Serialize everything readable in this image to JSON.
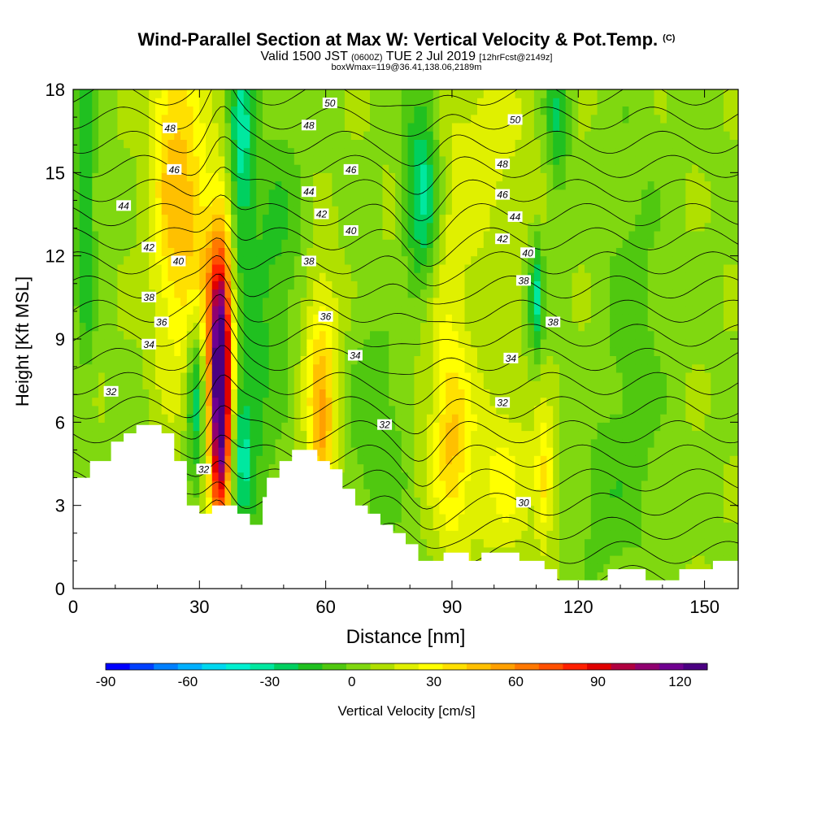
{
  "header": {
    "title": "Wind-Parallel Section at Max W: Vertical Velocity & Pot.Temp.",
    "copyright": "(C)",
    "valid_prefix": "Valid 1500 JST",
    "valid_utc": "(0600Z)",
    "valid_date": "TUE 2 Jul 2019",
    "forecast": "[12hrFcst@2149z]",
    "box_info": "boxWmax=119@36.41,138.06,2189m"
  },
  "chart_data": {
    "type": "heatmap",
    "title": "Wind-Parallel Section at Max W: Vertical Velocity & Pot.Temp.",
    "xlabel": "Distance [nm]",
    "ylabel": "Height [Kft MSL]",
    "xlim": [
      0,
      158
    ],
    "ylim": [
      0,
      18
    ],
    "x_ticks": [
      0,
      30,
      60,
      90,
      120,
      150
    ],
    "y_ticks": [
      0,
      3,
      6,
      9,
      12,
      15,
      18
    ],
    "colorbar": {
      "label": "Vertical Velocity [cm/s]",
      "ticks": [
        -90,
        -60,
        -30,
        0,
        30,
        60,
        90,
        120
      ],
      "range": [
        -90,
        130
      ],
      "colors": [
        "#0000ff",
        "#0040ff",
        "#0080ff",
        "#00b0ff",
        "#00d8f0",
        "#00f0d0",
        "#00e8a0",
        "#00d060",
        "#20c020",
        "#50c810",
        "#80d810",
        "#b0e000",
        "#e0f000",
        "#ffff00",
        "#ffe000",
        "#ffc000",
        "#ffa000",
        "#ff7800",
        "#ff5000",
        "#ff2000",
        "#e00000",
        "#b00040",
        "#900070",
        "#700090",
        "#4b0082"
      ]
    },
    "terrain_profile_kft": [
      [
        0,
        4.0
      ],
      [
        4,
        4.0
      ],
      [
        4,
        4.6
      ],
      [
        9,
        4.6
      ],
      [
        9,
        5.3
      ],
      [
        12,
        5.3
      ],
      [
        12,
        5.6
      ],
      [
        15,
        5.6
      ],
      [
        15,
        5.9
      ],
      [
        21,
        5.9
      ],
      [
        21,
        5.6
      ],
      [
        24,
        5.6
      ],
      [
        24,
        4.6
      ],
      [
        27,
        4.6
      ],
      [
        27,
        3.0
      ],
      [
        30,
        3.0
      ],
      [
        30,
        2.7
      ],
      [
        33,
        2.7
      ],
      [
        33,
        3.0
      ],
      [
        39,
        3.0
      ],
      [
        39,
        2.7
      ],
      [
        42,
        2.7
      ],
      [
        42,
        2.3
      ],
      [
        45,
        2.3
      ],
      [
        45,
        3.3
      ],
      [
        46,
        3.3
      ],
      [
        46,
        4.0
      ],
      [
        49,
        4.0
      ],
      [
        49,
        4.6
      ],
      [
        52,
        4.6
      ],
      [
        52,
        5.0
      ],
      [
        58,
        5.0
      ],
      [
        58,
        4.6
      ],
      [
        61,
        4.6
      ],
      [
        61,
        4.3
      ],
      [
        64,
        4.3
      ],
      [
        64,
        3.6
      ],
      [
        67,
        3.6
      ],
      [
        67,
        3.0
      ],
      [
        70,
        3.0
      ],
      [
        70,
        2.7
      ],
      [
        73,
        2.7
      ],
      [
        73,
        2.3
      ],
      [
        76,
        2.3
      ],
      [
        76,
        2.0
      ],
      [
        79,
        2.0
      ],
      [
        79,
        1.6
      ],
      [
        82,
        1.6
      ],
      [
        82,
        1.0
      ],
      [
        88,
        1.0
      ],
      [
        88,
        1.3
      ],
      [
        94,
        1.3
      ],
      [
        94,
        1.0
      ],
      [
        97,
        1.0
      ],
      [
        97,
        1.3
      ],
      [
        106,
        1.3
      ],
      [
        106,
        1.0
      ],
      [
        112,
        1.0
      ],
      [
        112,
        0.7
      ],
      [
        115,
        0.7
      ],
      [
        115,
        0.3
      ],
      [
        127,
        0.3
      ],
      [
        127,
        0.7
      ],
      [
        136,
        0.7
      ],
      [
        136,
        0.3
      ],
      [
        144,
        0.3
      ],
      [
        144,
        0.7
      ],
      [
        152,
        0.7
      ],
      [
        152,
        1.0
      ],
      [
        158,
        1.0
      ]
    ],
    "velocity_features": [
      {
        "x": 35,
        "z": 6.5,
        "sx": 1.8,
        "sz": 3.2,
        "w": 120
      },
      {
        "x": 35,
        "z": 10,
        "sx": 2.2,
        "sz": 3,
        "w": 45
      },
      {
        "x": 24,
        "z": 15,
        "sx": 4,
        "sz": 5,
        "w": 40
      },
      {
        "x": 30,
        "z": 12,
        "sx": 3,
        "sz": 3,
        "w": 25
      },
      {
        "x": 59,
        "z": 8,
        "sx": 3,
        "sz": 2.5,
        "w": 35
      },
      {
        "x": 59,
        "z": 5,
        "sx": 2,
        "sz": 1.5,
        "w": 30
      },
      {
        "x": 90,
        "z": 5,
        "sx": 3,
        "sz": 2.5,
        "w": 30
      },
      {
        "x": 102,
        "z": 4,
        "sx": 6,
        "sz": 2.5,
        "w": 20
      },
      {
        "x": 86,
        "z": 10,
        "sx": 6,
        "sz": 4,
        "w": 18
      },
      {
        "x": 112,
        "z": 4,
        "sx": 1.5,
        "sz": 1.5,
        "w": 30
      },
      {
        "x": 98,
        "z": 16,
        "sx": 8,
        "sz": 3,
        "w": 15
      },
      {
        "x": 44,
        "z": 8,
        "sx": 4,
        "sz": 5,
        "w": -15
      },
      {
        "x": 29,
        "z": 7,
        "sx": 1.5,
        "sz": 2.5,
        "w": -35
      },
      {
        "x": 40,
        "z": 5,
        "sx": 2,
        "sz": 2,
        "w": -30
      },
      {
        "x": 40,
        "z": 16,
        "sx": 2,
        "sz": 3,
        "w": -35
      },
      {
        "x": 83,
        "z": 14,
        "sx": 3,
        "sz": 3,
        "w": -45
      },
      {
        "x": 3,
        "z": 14,
        "sx": 1.5,
        "sz": 4,
        "w": -30
      },
      {
        "x": 110,
        "z": 10.5,
        "sx": 1.2,
        "sz": 1.5,
        "w": -35
      },
      {
        "x": 115,
        "z": 17,
        "sx": 2,
        "sz": 2,
        "w": -25
      },
      {
        "x": 133,
        "z": 8,
        "sx": 5,
        "sz": 6,
        "w": -12
      },
      {
        "x": 73,
        "z": 6,
        "sx": 6,
        "sz": 3,
        "w": -15
      },
      {
        "x": 50,
        "z": 13,
        "sx": 4,
        "sz": 3,
        "w": -12
      },
      {
        "x": 125,
        "z": 3,
        "sx": 4,
        "sz": 2,
        "w": -10
      }
    ],
    "theta_contour_labels": [
      {
        "text": "50",
        "x": 61,
        "z": 17.5
      },
      {
        "text": "48",
        "x": 23,
        "z": 16.6
      },
      {
        "text": "48",
        "x": 56,
        "z": 16.7
      },
      {
        "text": "50",
        "x": 105,
        "z": 16.9
      },
      {
        "text": "46",
        "x": 24,
        "z": 15.1
      },
      {
        "text": "46",
        "x": 66,
        "z": 15.1
      },
      {
        "text": "48",
        "x": 102,
        "z": 15.3
      },
      {
        "text": "44",
        "x": 12,
        "z": 13.8
      },
      {
        "text": "44",
        "x": 56,
        "z": 14.3
      },
      {
        "text": "46",
        "x": 102,
        "z": 14.2
      },
      {
        "text": "42",
        "x": 59,
        "z": 13.5
      },
      {
        "text": "40",
        "x": 66,
        "z": 12.9
      },
      {
        "text": "44",
        "x": 105,
        "z": 13.4
      },
      {
        "text": "42",
        "x": 18,
        "z": 12.3
      },
      {
        "text": "40",
        "x": 25,
        "z": 11.8
      },
      {
        "text": "42",
        "x": 102,
        "z": 12.6
      },
      {
        "text": "38",
        "x": 56,
        "z": 11.8
      },
      {
        "text": "40",
        "x": 108,
        "z": 12.1
      },
      {
        "text": "38",
        "x": 107,
        "z": 11.1
      },
      {
        "text": "38",
        "x": 18,
        "z": 10.5
      },
      {
        "text": "36",
        "x": 21,
        "z": 9.6
      },
      {
        "text": "36",
        "x": 60,
        "z": 9.8
      },
      {
        "text": "38",
        "x": 114,
        "z": 9.6
      },
      {
        "text": "34",
        "x": 18,
        "z": 8.8
      },
      {
        "text": "34",
        "x": 67,
        "z": 8.4
      },
      {
        "text": "34",
        "x": 104,
        "z": 8.3
      },
      {
        "text": "32",
        "x": 9,
        "z": 7.1
      },
      {
        "text": "32",
        "x": 102,
        "z": 6.7
      },
      {
        "text": "32",
        "x": 74,
        "z": 5.9
      },
      {
        "text": "32",
        "x": 31,
        "z": 4.3
      },
      {
        "text": "30",
        "x": 107,
        "z": 3.1
      }
    ]
  }
}
